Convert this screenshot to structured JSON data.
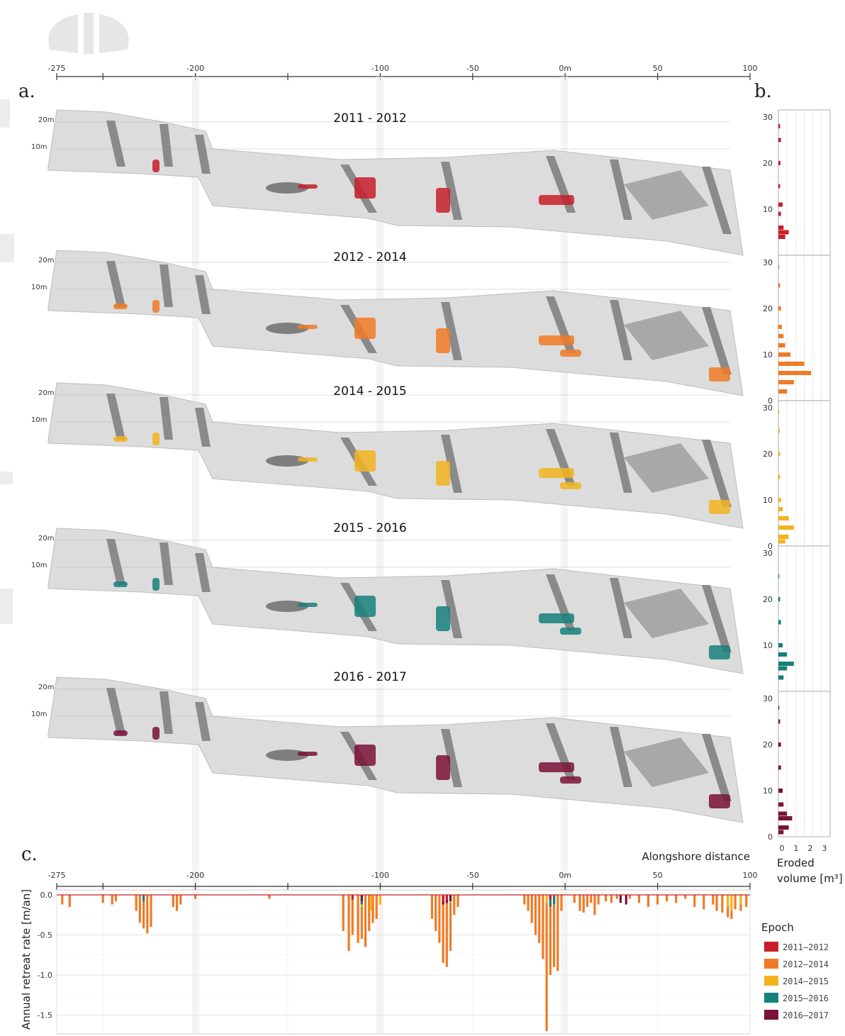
{
  "panels": {
    "a": "a.",
    "b": "b.",
    "c": "c."
  },
  "top_axis": {
    "ticks": [
      "-275",
      "-200",
      "-100",
      "-50",
      "0m",
      "50",
      "100"
    ]
  },
  "epochs": [
    {
      "title": "2011 - 2012",
      "color": "#c81e2a"
    },
    {
      "title": "2012 - 2014",
      "color": "#f07a25"
    },
    {
      "title": "2014 - 2015",
      "color": "#f2b31e"
    },
    {
      "title": "2015 - 2016",
      "color": "#16807a"
    },
    {
      "title": "2016 - 2017",
      "color": "#7a1238"
    }
  ],
  "height_labels": [
    "20m",
    "10m"
  ],
  "alongshore_label": "Alongshore distance",
  "hist": {
    "xlabel_line1": "Eroded",
    "xlabel_line2": "volume [m³]",
    "xticks": [
      "0",
      "1",
      "2",
      "3"
    ],
    "yticks": [
      "30",
      "20",
      "10",
      "0"
    ]
  },
  "legend": {
    "title": "Epoch",
    "items": [
      "2011–2012",
      "2012–2014",
      "2014–2015",
      "2015–2016",
      "2016–2017"
    ]
  },
  "chart_data": [
    {
      "type": "bar",
      "title": "",
      "xlabel": "",
      "ylabel": "",
      "xlim": [
        0,
        3
      ],
      "ylim": [
        0,
        30
      ],
      "note": "Histograms of eroded volume by height (panel b), one per epoch",
      "series": [
        {
          "name": "2011–2012",
          "heights": [
            4,
            5,
            6,
            9,
            11,
            15,
            20,
            25,
            28
          ],
          "values": [
            0.4,
            0.6,
            0.3,
            0.15,
            0.25,
            0.1,
            0.12,
            0.15,
            0.1
          ]
        },
        {
          "name": "2012–2014",
          "heights": [
            2,
            4,
            6,
            8,
            10,
            12,
            14,
            16,
            20,
            25,
            29
          ],
          "values": [
            0.5,
            0.9,
            1.9,
            1.5,
            0.7,
            0.4,
            0.3,
            0.2,
            0.15,
            0.1,
            0.05
          ]
        },
        {
          "name": "2014–2015",
          "heights": [
            1,
            2,
            4,
            6,
            8,
            10,
            15,
            20,
            25,
            29
          ],
          "values": [
            0.4,
            0.6,
            0.9,
            0.6,
            0.25,
            0.15,
            0.1,
            0.1,
            0.08,
            0.05
          ]
        },
        {
          "name": "2015–2016",
          "heights": [
            3,
            5,
            6,
            8,
            10,
            15,
            20,
            25
          ],
          "values": [
            0.3,
            0.5,
            0.9,
            0.5,
            0.25,
            0.15,
            0.1,
            0.05
          ]
        },
        {
          "name": "2016–2017",
          "heights": [
            1,
            2,
            4,
            5,
            7,
            10,
            15,
            20,
            25,
            28
          ],
          "values": [
            0.3,
            0.6,
            0.8,
            0.5,
            0.3,
            0.25,
            0.15,
            0.15,
            0.1,
            0.05
          ]
        }
      ]
    },
    {
      "type": "bar",
      "title": "",
      "xlabel": "",
      "ylabel": "Annual retreat rate [m/an]",
      "xlim": [
        -275,
        100
      ],
      "ylim": [
        -1.7,
        0.05
      ],
      "yticks": [
        "0.0",
        "-0.5",
        "-1.0",
        "-1.5"
      ],
      "xticks": [
        "-275",
        "-200",
        "-100",
        "-50",
        "0m",
        "50",
        "100"
      ],
      "series": [
        {
          "name": "2012–2014",
          "x": [
            -272,
            -268,
            -250,
            -245,
            -243,
            -232,
            -230,
            -228,
            -226,
            -224,
            -212,
            -210,
            -208,
            -200,
            -160,
            -120,
            -117,
            -115,
            -112,
            -110,
            -108,
            -106,
            -104,
            -102,
            -72,
            -70,
            -68,
            -66,
            -64,
            -62,
            -60,
            -58,
            -22,
            -20,
            -18,
            -16,
            -14,
            -12,
            -10,
            -8,
            -6,
            -4,
            -2,
            5,
            8,
            10,
            12,
            14,
            16,
            18,
            22,
            25,
            28,
            35,
            40,
            45,
            50,
            55,
            60,
            65,
            70,
            75,
            80,
            82,
            85,
            88,
            90,
            92,
            95,
            98
          ],
          "values": [
            -0.12,
            -0.15,
            -0.1,
            -0.12,
            -0.08,
            -0.2,
            -0.35,
            -0.42,
            -0.48,
            -0.4,
            -0.15,
            -0.2,
            -0.12,
            -0.05,
            -0.05,
            -0.45,
            -0.7,
            -0.5,
            -0.6,
            -0.55,
            -0.65,
            -0.45,
            -0.35,
            -0.3,
            -0.3,
            -0.45,
            -0.6,
            -0.85,
            -0.9,
            -0.7,
            -0.25,
            -0.15,
            -0.12,
            -0.2,
            -0.35,
            -0.5,
            -0.6,
            -0.8,
            -1.7,
            -1.0,
            -0.9,
            -0.95,
            -0.2,
            -0.1,
            -0.2,
            -0.22,
            -0.15,
            -0.1,
            -0.25,
            -0.12,
            -0.08,
            -0.1,
            -0.05,
            -0.05,
            -0.1,
            -0.15,
            -0.12,
            -0.08,
            -0.1,
            -0.05,
            -0.15,
            -0.18,
            -0.12,
            -0.2,
            -0.22,
            -0.28,
            -0.3,
            -0.18,
            -0.2,
            -0.15
          ]
        },
        {
          "name": "2014–2015",
          "x": [
            -110,
            -105,
            -100,
            -62,
            -10,
            88,
            90,
            95
          ],
          "values": [
            -0.15,
            -0.2,
            -0.12,
            -0.1,
            -0.1,
            -0.15,
            -0.2,
            -0.12
          ]
        },
        {
          "name": "2015–2016",
          "x": [
            -228,
            -110,
            -66,
            -8,
            -6
          ],
          "values": [
            -0.08,
            -0.12,
            -0.08,
            -0.15,
            -0.12
          ]
        },
        {
          "name": "2016–2017",
          "x": [
            -110,
            -66,
            -64,
            -62,
            30,
            33
          ],
          "values": [
            -0.08,
            -0.12,
            -0.1,
            -0.08,
            -0.1,
            -0.12
          ]
        },
        {
          "name": "2011–2012",
          "x": [
            -115,
            -66,
            -64,
            -8
          ],
          "values": [
            -0.06,
            -0.08,
            -0.07,
            -0.06
          ]
        }
      ]
    }
  ]
}
